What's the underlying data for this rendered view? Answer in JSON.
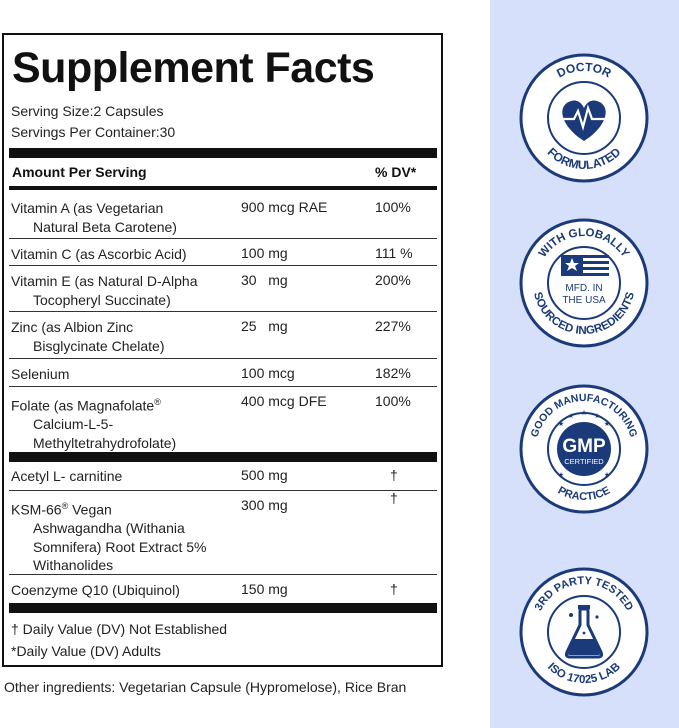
{
  "facts": {
    "title": "Supplement Facts",
    "serving_size": "Serving Size:2 Capsules",
    "servings_per_container": "Servings Per Container:30",
    "header_amount": "Amount Per Serving",
    "header_dv": "% DV*",
    "rows": [
      {
        "name1": "Vitamin A (as Vegetarian",
        "name2": "Natural Beta Carotene)",
        "amount": "900 mcg RAE",
        "dv": "100%"
      },
      {
        "name1": "Vitamin C (as Ascorbic Acid)",
        "name2": "",
        "amount": "100 mg",
        "dv": "111 %"
      },
      {
        "name1": "Vitamin E (as Natural D-Alpha",
        "name2": "Tocopheryl Succinate)",
        "amount": "30   mg",
        "dv": "200%"
      },
      {
        "name1": "Zinc (as Albion Zinc",
        "name2": "Bisglycinate Chelate)",
        "amount": "25   mg",
        "dv": "227%"
      },
      {
        "name1": "Selenium",
        "name2": "",
        "amount": "100 mcg",
        "dv": "182%"
      },
      {
        "name1": "Folate (as Magnafolate",
        "reg": "®",
        "name2": "Calcium-L-5-",
        "name3": "Methyltetrahydrofolate)",
        "amount": "400 mcg DFE",
        "dv": "100%"
      }
    ],
    "rows2": [
      {
        "name1": "Acetyl L- carnitine",
        "amount": "500 mg",
        "dv": "†"
      },
      {
        "name1": "KSM-66",
        "reg": "®",
        "name1b": " Vegan",
        "name2": "Ashwagandha (Withania",
        "name3": "Somnifera) Root Extract 5%",
        "name4": "Withanolides",
        "amount": "300 mg",
        "dv": "†"
      },
      {
        "name1": "Coenzyme Q10 (Ubiquinol)",
        "amount": "150 mg",
        "dv": "†"
      }
    ],
    "footnote1": "† Daily Value (DV) Not Established",
    "footnote2": "*Daily Value (DV) Adults"
  },
  "other_ingredients": "Other ingredients: Vegetarian Capsule (Hypromelose), Rice Bran",
  "badges": {
    "doctor_top": "DOCTOR",
    "doctor_bottom": "FORMULATED",
    "usa_top": "WITH GLOBALLY",
    "usa_bottom": "SOURCED INGREDIENTS",
    "usa_center1": "MFD. IN",
    "usa_center2": "THE USA",
    "gmp_top": "GOOD MANUFACTURING",
    "gmp_bottom": "PRACTICE",
    "gmp_center": "GMP",
    "gmp_sub": "CERTIFIED",
    "lab_top": "3RD PARTY TESTED",
    "lab_bottom": "ISO 17025 LAB"
  },
  "colors": {
    "navy": "#1a3a7a",
    "panel": "#d6e0fb"
  }
}
